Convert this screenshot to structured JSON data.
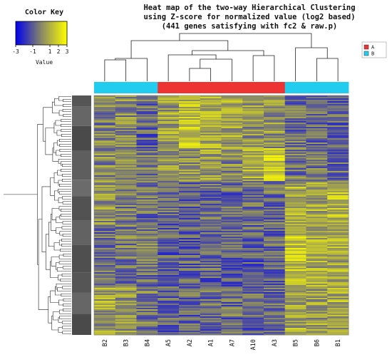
{
  "chart_data": {
    "type": "heatmap",
    "title_lines": [
      "Heat map of the two-way Hierarchical Clustering",
      "using Z-score for normalized value (log2 based)",
      "(441 genes satisfying with fc2 & raw.p)"
    ],
    "columns": [
      "B2",
      "B3",
      "B4",
      "A5",
      "A2",
      "A1",
      "A7",
      "A10",
      "A3",
      "B5",
      "B6",
      "B1"
    ],
    "column_groups": [
      "B",
      "B",
      "B",
      "A",
      "A",
      "A",
      "A",
      "A",
      "A",
      "B",
      "B",
      "B"
    ],
    "legend": [
      {
        "label": "A",
        "color": "#ee3333"
      },
      {
        "label": "B",
        "color": "#22ccee"
      }
    ],
    "color_key": {
      "title": "Color Key",
      "label": "Value",
      "ticks": [
        -3,
        -1,
        1,
        2,
        3
      ],
      "range": [
        -3,
        3
      ],
      "colors": {
        "low": "#0000ee",
        "mid": "#888866",
        "high": "#ffff00"
      }
    },
    "row_count": 441
  }
}
